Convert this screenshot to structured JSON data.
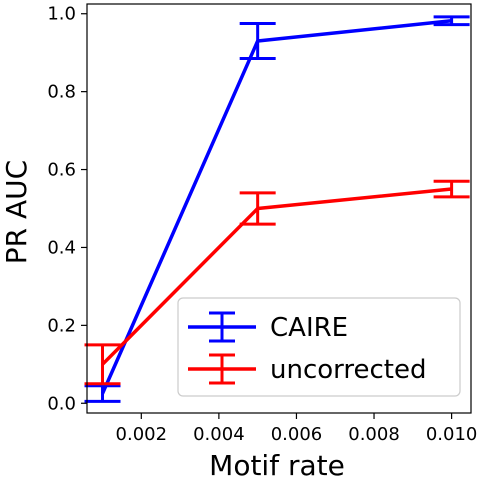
{
  "chart_data": {
    "type": "line",
    "title": "",
    "xlabel": "Motif rate",
    "ylabel": "PR AUC",
    "xlim": [
      0.0006,
      0.0105
    ],
    "ylim": [
      -0.025,
      1.025
    ],
    "xticks": [
      0.002,
      0.004,
      0.006,
      0.008,
      0.01
    ],
    "xtick_labels": [
      "0.002",
      "0.004",
      "0.006",
      "0.008",
      "0.010"
    ],
    "yticks": [
      0.0,
      0.2,
      0.4,
      0.6,
      0.8,
      1.0
    ],
    "ytick_labels": [
      "0.0",
      "0.2",
      "0.4",
      "0.6",
      "0.8",
      "1.0"
    ],
    "grid": false,
    "legend_position": "bottom-right",
    "x": [
      0.001,
      0.005,
      0.01
    ],
    "series": [
      {
        "name": "CAIRE",
        "color": "#0000ff",
        "values": [
          0.025,
          0.93,
          0.982
        ],
        "error": [
          0.02,
          0.045,
          0.01
        ]
      },
      {
        "name": "uncorrected",
        "color": "#ff0000",
        "values": [
          0.1,
          0.5,
          0.55
        ],
        "error": [
          0.05,
          0.04,
          0.02
        ]
      }
    ]
  }
}
